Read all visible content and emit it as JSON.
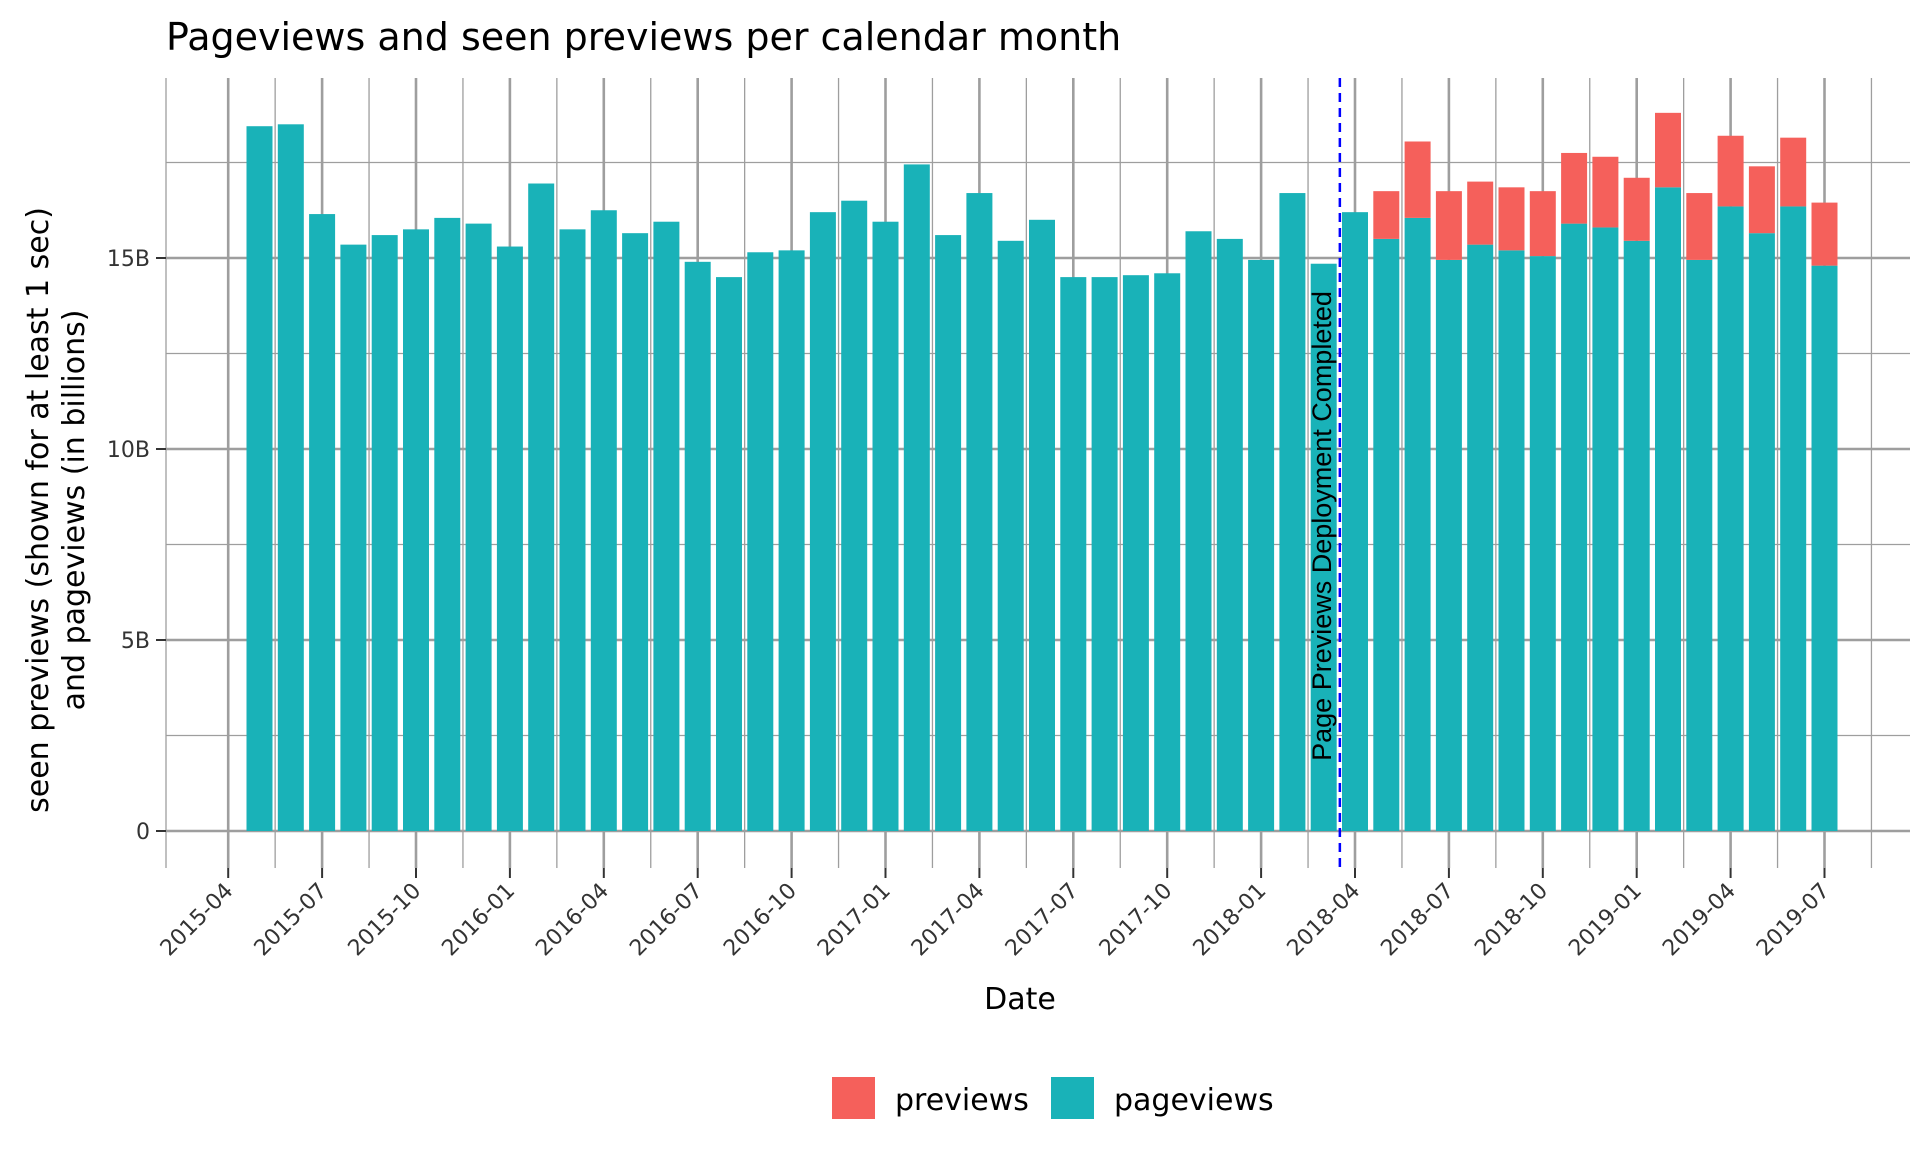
{
  "chart_data": {
    "type": "bar",
    "stacked": true,
    "title": "Pageviews and seen previews per calendar month",
    "xlabel": "Date",
    "ylabel_lines": [
      "seen previews (shown for at least 1 sec)",
      "and pageviews (in billions)"
    ],
    "ylim": [
      -0.8,
      19.9
    ],
    "yticks": [
      0,
      5,
      10,
      15
    ],
    "ytick_labels": [
      "0",
      "5B",
      "10B",
      "15B"
    ],
    "xtick_labels": [
      "2015-04",
      "2015-07",
      "2015-10",
      "2016-01",
      "2016-04",
      "2016-07",
      "2016-10",
      "2017-01",
      "2017-04",
      "2017-07",
      "2017-10",
      "2018-01",
      "2018-04",
      "2018-07",
      "2018-10",
      "2019-01",
      "2019-04",
      "2019-07"
    ],
    "categories": [
      "2015-05",
      "2015-06",
      "2015-07",
      "2015-08",
      "2015-09",
      "2015-10",
      "2015-11",
      "2015-12",
      "2016-01",
      "2016-02",
      "2016-03",
      "2016-04",
      "2016-05",
      "2016-06",
      "2016-07",
      "2016-08",
      "2016-09",
      "2016-10",
      "2016-11",
      "2016-12",
      "2017-01",
      "2017-02",
      "2017-03",
      "2017-04",
      "2017-05",
      "2017-06",
      "2017-07",
      "2017-08",
      "2017-09",
      "2017-10",
      "2017-11",
      "2017-12",
      "2018-01",
      "2018-02",
      "2018-03",
      "2018-04",
      "2018-05",
      "2018-06",
      "2018-07",
      "2018-08",
      "2018-09",
      "2018-10",
      "2018-11",
      "2018-12",
      "2019-01",
      "2019-02",
      "2019-03",
      "2019-04",
      "2019-05",
      "2019-06",
      "2019-07"
    ],
    "series": [
      {
        "name": "pageviews",
        "color": "#19B2B8",
        "values": [
          18.45,
          18.5,
          16.15,
          15.35,
          15.6,
          15.75,
          16.05,
          15.9,
          15.3,
          16.95,
          15.75,
          16.25,
          15.65,
          15.95,
          14.9,
          14.5,
          15.15,
          15.2,
          16.2,
          16.5,
          15.95,
          17.45,
          15.6,
          16.7,
          15.45,
          16.0,
          14.5,
          14.5,
          14.55,
          14.6,
          15.7,
          15.5,
          14.95,
          16.7,
          14.85,
          16.2,
          15.5,
          16.05,
          14.95,
          15.35,
          15.2,
          15.05,
          15.9,
          15.8,
          15.45,
          16.85,
          14.95,
          16.35,
          15.65,
          16.35,
          14.8
        ]
      },
      {
        "name": "previews",
        "color": "#F5605B",
        "values": [
          0,
          0,
          0,
          0,
          0,
          0,
          0,
          0,
          0,
          0,
          0,
          0,
          0,
          0,
          0,
          0,
          0,
          0,
          0,
          0,
          0,
          0,
          0,
          0,
          0,
          0,
          0,
          0,
          0,
          0,
          0,
          0,
          0,
          0,
          0,
          0,
          1.25,
          2.0,
          1.8,
          1.65,
          1.65,
          1.7,
          1.85,
          1.85,
          1.65,
          1.95,
          1.75,
          1.85,
          1.75,
          1.8,
          1.65
        ]
      }
    ],
    "legend": {
      "position": "bottom",
      "entries": [
        {
          "label": "previews",
          "color": "#F5605B"
        },
        {
          "label": "pageviews",
          "color": "#19B2B8"
        }
      ]
    },
    "annotation": {
      "text": "Page Previews Deployment Completed",
      "at": "2018-04",
      "line_color": "#0000FF",
      "line_style": "dashed"
    }
  }
}
